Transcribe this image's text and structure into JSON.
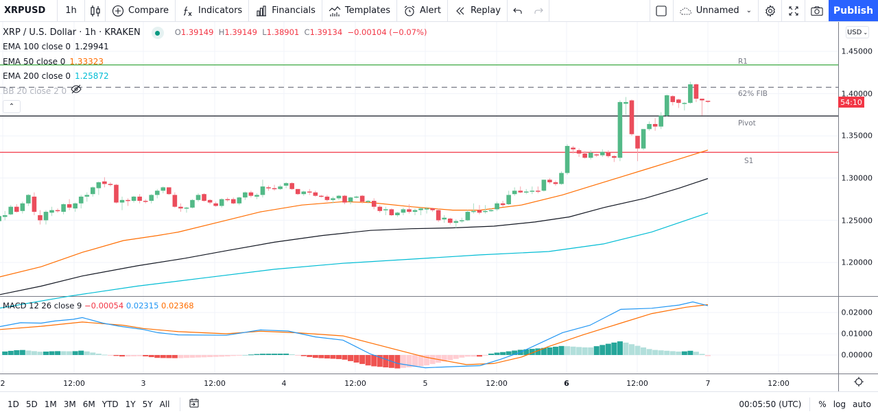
{
  "toolbar": {
    "symbol": "XRPUSD",
    "interval": "1h",
    "compare": "Compare",
    "indicators": "Indicators",
    "financials": "Financials",
    "templates": "Templates",
    "alert": "Alert",
    "replay": "Replay",
    "layout_name": "Unnamed",
    "publish": "Publish"
  },
  "legend": {
    "title": "XRP / U.S. Dollar · 1h · KRAKEN",
    "ohlc": {
      "o_label": "O",
      "o": "1.39149",
      "h_label": "H",
      "h": "1.39149",
      "l_label": "L",
      "l": "1.38901",
      "c_label": "C",
      "c": "1.39134",
      "change": "−0.00104 (−0.07%)"
    },
    "indicators": [
      {
        "label": "EMA 100 close 0",
        "value": "1.29941",
        "color": "#131722"
      },
      {
        "label": "EMA 50 close 0",
        "value": "1.33323",
        "color": "#ff6d00"
      },
      {
        "label": "EMA 200 close 0",
        "value": "1.25872",
        "color": "#00bcd4"
      },
      {
        "label": "BB 20 close 2 0",
        "value": "",
        "color": "#b2b5be",
        "hidden": true
      }
    ]
  },
  "macd": {
    "label": "MACD 12 26 close 9",
    "histogram": "−0.00054",
    "macd": "0.02315",
    "signal": "0.02368",
    "colors": {
      "histogram": "#f23645",
      "macd": "#2196f3",
      "signal": "#ff6d00"
    }
  },
  "price_axis": {
    "currency": "USD",
    "labels": [
      "1.45000",
      "1.40000",
      "1.35000",
      "1.30000",
      "1.25000",
      "1.20000"
    ],
    "countdown": "54:10"
  },
  "macd_axis": {
    "labels": [
      "0.02000",
      "0.01000",
      "0.00000"
    ]
  },
  "levels": [
    {
      "name": "R1",
      "price": 1.434,
      "color": "#4caf50"
    },
    {
      "name": "62% FIB",
      "price": 1.4075,
      "color": "#787b86",
      "dashed": true
    },
    {
      "name": "Pivot",
      "price": 1.3735,
      "color": "#131722"
    },
    {
      "name": "S1",
      "price": 1.3305,
      "color": "#f23645"
    }
  ],
  "time_axis": {
    "labels": [
      "2",
      "12:00",
      "3",
      "12:00",
      "4",
      "12:00",
      "5",
      "12:00",
      "6",
      "12:00",
      "7",
      "12:00"
    ]
  },
  "bottom": {
    "ranges": [
      "1D",
      "5D",
      "1M",
      "3M",
      "6M",
      "YTD",
      "1Y",
      "5Y",
      "All"
    ],
    "clock": "00:05:50 (UTC)",
    "percent": "%",
    "log": "log",
    "auto": "auto"
  },
  "colors": {
    "up": "#26a69a",
    "up_candle": "#53b987",
    "down": "#eb4d5c",
    "accent": "#2962ff"
  },
  "chart_data": {
    "type": "candlestick",
    "title": "XRP / U.S. Dollar · 1h · KRAKEN",
    "ylim": [
      1.16,
      1.47
    ],
    "x_ticks": [
      "2",
      "12:00",
      "3",
      "12:00",
      "4",
      "12:00",
      "5",
      "12:00",
      "6",
      "12:00",
      "7",
      "12:00"
    ],
    "y_ticks": [
      1.2,
      1.25,
      1.3,
      1.35,
      1.4,
      1.45
    ],
    "candles": [
      [
        1.239,
        1.242,
        1.227,
        1.228
      ],
      [
        1.229,
        1.255,
        1.225,
        1.25
      ],
      [
        1.249,
        1.258,
        1.245,
        1.255
      ],
      [
        1.254,
        1.261,
        1.25,
        1.256
      ],
      [
        1.257,
        1.268,
        1.256,
        1.266
      ],
      [
        1.266,
        1.269,
        1.259,
        1.26
      ],
      [
        1.261,
        1.272,
        1.258,
        1.27
      ],
      [
        1.27,
        1.281,
        1.267,
        1.28
      ],
      [
        1.278,
        1.283,
        1.256,
        1.26
      ],
      [
        1.256,
        1.262,
        1.245,
        1.25
      ],
      [
        1.25,
        1.262,
        1.245,
        1.26
      ],
      [
        1.259,
        1.266,
        1.255,
        1.262
      ],
      [
        1.262,
        1.264,
        1.259,
        1.261
      ],
      [
        1.26,
        1.27,
        1.257,
        1.269
      ],
      [
        1.269,
        1.275,
        1.262,
        1.265
      ],
      [
        1.264,
        1.271,
        1.26,
        1.27
      ],
      [
        1.27,
        1.28,
        1.264,
        1.278
      ],
      [
        1.278,
        1.283,
        1.272,
        1.28
      ],
      [
        1.281,
        1.29,
        1.278,
        1.289
      ],
      [
        1.288,
        1.296,
        1.28,
        1.295
      ],
      [
        1.296,
        1.301,
        1.289,
        1.293
      ],
      [
        1.293,
        1.295,
        1.29,
        1.292
      ],
      [
        1.292,
        1.293,
        1.27,
        1.271
      ],
      [
        1.271,
        1.278,
        1.262,
        1.274
      ],
      [
        1.274,
        1.276,
        1.267,
        1.273
      ],
      [
        1.273,
        1.279,
        1.271,
        1.278
      ],
      [
        1.278,
        1.281,
        1.27,
        1.273
      ],
      [
        1.273,
        1.275,
        1.27,
        1.272
      ],
      [
        1.273,
        1.281,
        1.27,
        1.28
      ],
      [
        1.28,
        1.287,
        1.276,
        1.285
      ],
      [
        1.285,
        1.29,
        1.282,
        1.289
      ],
      [
        1.289,
        1.289,
        1.28,
        1.281
      ],
      [
        1.28,
        1.283,
        1.265,
        1.266
      ],
      [
        1.266,
        1.27,
        1.26,
        1.264
      ],
      [
        1.264,
        1.266,
        1.259,
        1.265
      ],
      [
        1.265,
        1.275,
        1.264,
        1.274
      ],
      [
        1.274,
        1.282,
        1.272,
        1.28
      ],
      [
        1.281,
        1.282,
        1.272,
        1.273
      ],
      [
        1.274,
        1.275,
        1.269,
        1.271
      ],
      [
        1.27,
        1.272,
        1.266,
        1.267
      ],
      [
        1.267,
        1.276,
        1.265,
        1.275
      ],
      [
        1.275,
        1.277,
        1.272,
        1.274
      ],
      [
        1.275,
        1.277,
        1.269,
        1.27
      ],
      [
        1.27,
        1.278,
        1.268,
        1.277
      ],
      [
        1.277,
        1.284,
        1.274,
        1.283
      ],
      [
        1.283,
        1.285,
        1.277,
        1.279
      ],
      [
        1.278,
        1.282,
        1.275,
        1.28
      ],
      [
        1.28,
        1.298,
        1.277,
        1.29
      ],
      [
        1.289,
        1.291,
        1.285,
        1.288
      ],
      [
        1.288,
        1.292,
        1.285,
        1.287
      ],
      [
        1.287,
        1.292,
        1.286,
        1.29
      ],
      [
        1.291,
        1.295,
        1.288,
        1.294
      ],
      [
        1.294,
        1.295,
        1.286,
        1.287
      ],
      [
        1.287,
        1.287,
        1.28,
        1.281
      ],
      [
        1.281,
        1.285,
        1.279,
        1.284
      ],
      [
        1.284,
        1.287,
        1.28,
        1.283
      ],
      [
        1.283,
        1.285,
        1.278,
        1.279
      ],
      [
        1.279,
        1.28,
        1.277,
        1.278
      ],
      [
        1.278,
        1.28,
        1.272,
        1.274
      ],
      [
        1.274,
        1.278,
        1.27,
        1.276
      ],
      [
        1.276,
        1.28,
        1.274,
        1.279
      ],
      [
        1.279,
        1.28,
        1.269,
        1.271
      ],
      [
        1.272,
        1.278,
        1.269,
        1.277
      ],
      [
        1.277,
        1.279,
        1.276,
        1.278
      ],
      [
        1.279,
        1.28,
        1.27,
        1.272
      ],
      [
        1.272,
        1.274,
        1.27,
        1.273
      ],
      [
        1.273,
        1.276,
        1.263,
        1.266
      ],
      [
        1.266,
        1.268,
        1.259,
        1.261
      ],
      [
        1.262,
        1.266,
        1.256,
        1.263
      ],
      [
        1.263,
        1.264,
        1.255,
        1.256
      ],
      [
        1.256,
        1.26,
        1.254,
        1.259
      ],
      [
        1.259,
        1.265,
        1.256,
        1.263
      ],
      [
        1.263,
        1.269,
        1.258,
        1.26
      ],
      [
        1.26,
        1.264,
        1.256,
        1.262
      ],
      [
        1.262,
        1.265,
        1.256,
        1.264
      ],
      [
        1.263,
        1.266,
        1.258,
        1.264
      ],
      [
        1.264,
        1.265,
        1.26,
        1.262
      ],
      [
        1.262,
        1.264,
        1.248,
        1.25
      ],
      [
        1.251,
        1.256,
        1.247,
        1.253
      ],
      [
        1.252,
        1.253,
        1.245,
        1.247
      ],
      [
        1.247,
        1.251,
        1.241,
        1.249
      ],
      [
        1.25,
        1.253,
        1.247,
        1.25
      ],
      [
        1.25,
        1.262,
        1.249,
        1.26
      ],
      [
        1.26,
        1.27,
        1.258,
        1.261
      ],
      [
        1.262,
        1.268,
        1.257,
        1.259
      ],
      [
        1.26,
        1.268,
        1.258,
        1.261
      ],
      [
        1.261,
        1.264,
        1.26,
        1.262
      ],
      [
        1.263,
        1.272,
        1.261,
        1.27
      ],
      [
        1.27,
        1.273,
        1.266,
        1.268
      ],
      [
        1.269,
        1.285,
        1.268,
        1.28
      ],
      [
        1.281,
        1.289,
        1.279,
        1.285
      ],
      [
        1.285,
        1.29,
        1.282,
        1.283
      ],
      [
        1.283,
        1.287,
        1.281,
        1.284
      ],
      [
        1.284,
        1.29,
        1.281,
        1.285
      ],
      [
        1.285,
        1.29,
        1.282,
        1.284
      ],
      [
        1.285,
        1.298,
        1.284,
        1.298
      ],
      [
        1.298,
        1.3,
        1.293,
        1.295
      ],
      [
        1.295,
        1.297,
        1.291,
        1.293
      ],
      [
        1.293,
        1.308,
        1.292,
        1.306
      ],
      [
        1.306,
        1.34,
        1.304,
        1.338
      ],
      [
        1.336,
        1.338,
        1.329,
        1.334
      ],
      [
        1.333,
        1.335,
        1.325,
        1.329
      ],
      [
        1.329,
        1.332,
        1.323,
        1.324
      ],
      [
        1.324,
        1.333,
        1.322,
        1.33
      ],
      [
        1.328,
        1.329,
        1.325,
        1.327
      ],
      [
        1.327,
        1.334,
        1.325,
        1.331
      ],
      [
        1.33,
        1.333,
        1.324,
        1.326
      ],
      [
        1.326,
        1.327,
        1.319,
        1.324
      ],
      [
        1.324,
        1.392,
        1.32,
        1.39
      ],
      [
        1.388,
        1.396,
        1.375,
        1.39
      ],
      [
        1.392,
        1.393,
        1.35,
        1.352
      ],
      [
        1.35,
        1.35,
        1.32,
        1.335
      ],
      [
        1.335,
        1.358,
        1.333,
        1.358
      ],
      [
        1.358,
        1.367,
        1.356,
        1.364
      ],
      [
        1.364,
        1.371,
        1.356,
        1.361
      ],
      [
        1.361,
        1.378,
        1.358,
        1.374
      ],
      [
        1.374,
        1.399,
        1.373,
        1.398
      ],
      [
        1.397,
        1.398,
        1.386,
        1.39
      ],
      [
        1.393,
        1.394,
        1.383,
        1.389
      ],
      [
        1.389,
        1.39,
        1.38,
        1.389
      ],
      [
        1.389,
        1.414,
        1.388,
        1.411
      ],
      [
        1.411,
        1.412,
        1.39,
        1.394
      ],
      [
        1.394,
        1.394,
        1.374,
        1.392
      ],
      [
        1.3915,
        1.3915,
        1.389,
        1.3913
      ]
    ],
    "series": [
      {
        "name": "EMA 50",
        "color": "#ff6d00",
        "points": [
          [
            0,
            1.183
          ],
          [
            60,
            1.195
          ],
          [
            120,
            1.212
          ],
          [
            180,
            1.226
          ],
          [
            230,
            1.232
          ],
          [
            260,
            1.236
          ],
          [
            330,
            1.25
          ],
          [
            380,
            1.26
          ],
          [
            440,
            1.268
          ],
          [
            500,
            1.272
          ],
          [
            540,
            1.271
          ],
          [
            600,
            1.266
          ],
          [
            660,
            1.262
          ],
          [
            700,
            1.262
          ],
          [
            760,
            1.268
          ],
          [
            820,
            1.28
          ],
          [
            860,
            1.29
          ],
          [
            900,
            1.3
          ],
          [
            940,
            1.31
          ],
          [
            980,
            1.32
          ],
          [
            1032,
            1.3332
          ]
        ]
      },
      {
        "name": "EMA 100",
        "color": "#131722",
        "points": [
          [
            0,
            1.162
          ],
          [
            60,
            1.172
          ],
          [
            120,
            1.184
          ],
          [
            200,
            1.196
          ],
          [
            270,
            1.205
          ],
          [
            330,
            1.214
          ],
          [
            400,
            1.224
          ],
          [
            470,
            1.232
          ],
          [
            540,
            1.238
          ],
          [
            600,
            1.24
          ],
          [
            660,
            1.241
          ],
          [
            720,
            1.243
          ],
          [
            780,
            1.248
          ],
          [
            830,
            1.254
          ],
          [
            880,
            1.265
          ],
          [
            940,
            1.276
          ],
          [
            990,
            1.288
          ],
          [
            1032,
            1.2994
          ]
        ]
      },
      {
        "name": "EMA 200",
        "color": "#00bcd4",
        "points": [
          [
            0,
            1.146
          ],
          [
            100,
            1.16
          ],
          [
            200,
            1.172
          ],
          [
            300,
            1.182
          ],
          [
            400,
            1.192
          ],
          [
            500,
            1.199
          ],
          [
            600,
            1.204
          ],
          [
            700,
            1.209
          ],
          [
            800,
            1.213
          ],
          [
            880,
            1.222
          ],
          [
            950,
            1.236
          ],
          [
            1032,
            1.2587
          ]
        ]
      }
    ],
    "macd_series": {
      "macd": [
        [
          0,
          0.0134
        ],
        [
          30,
          0.0152
        ],
        [
          60,
          0.015
        ],
        [
          80,
          0.016
        ],
        [
          107,
          0.0168
        ],
        [
          120,
          0.0176
        ],
        [
          150,
          0.015
        ],
        [
          175,
          0.0135
        ],
        [
          209,
          0.012
        ],
        [
          230,
          0.0105
        ],
        [
          260,
          0.0095
        ],
        [
          330,
          0.0093
        ],
        [
          380,
          0.0118
        ],
        [
          420,
          0.0113
        ],
        [
          460,
          0.0085
        ],
        [
          500,
          0.007
        ],
        [
          540,
          0.0005
        ],
        [
          580,
          -0.004
        ],
        [
          620,
          -0.006
        ],
        [
          660,
          -0.0055
        ],
        [
          700,
          -0.005
        ],
        [
          730,
          -0.002
        ],
        [
          760,
          0.0015
        ],
        [
          790,
          0.006
        ],
        [
          820,
          0.0105
        ],
        [
          860,
          0.014
        ],
        [
          905,
          0.0215
        ],
        [
          950,
          0.022
        ],
        [
          990,
          0.0235
        ],
        [
          1010,
          0.025
        ],
        [
          1032,
          0.0232
        ]
      ],
      "signal": [
        [
          0,
          0.012
        ],
        [
          60,
          0.0135
        ],
        [
          120,
          0.0155
        ],
        [
          180,
          0.014
        ],
        [
          209,
          0.0125
        ],
        [
          260,
          0.011
        ],
        [
          330,
          0.01
        ],
        [
          380,
          0.0112
        ],
        [
          430,
          0.0105
        ],
        [
          500,
          0.009
        ],
        [
          560,
          0.004
        ],
        [
          620,
          -0.001
        ],
        [
          680,
          -0.0045
        ],
        [
          720,
          -0.004
        ],
        [
          760,
          -0.001
        ],
        [
          800,
          0.004
        ],
        [
          850,
          0.0095
        ],
        [
          905,
          0.015
        ],
        [
          950,
          0.0195
        ],
        [
          1000,
          0.0225
        ],
        [
          1032,
          0.0237
        ]
      ]
    }
  }
}
